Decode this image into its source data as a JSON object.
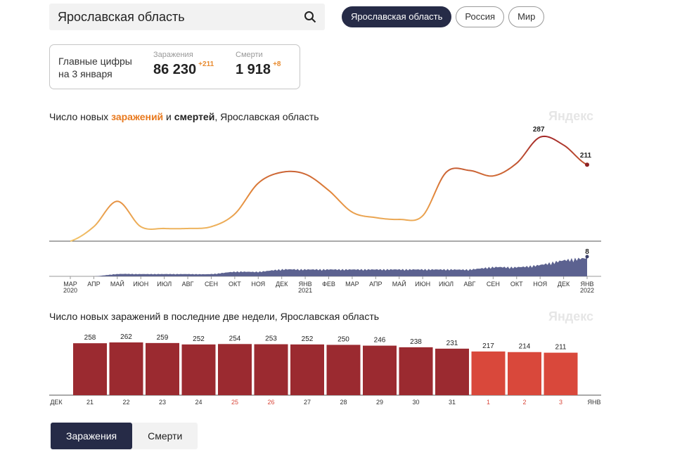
{
  "search": {
    "value": "Ярославская область"
  },
  "region_tabs": [
    {
      "label": "Ярославская область",
      "active": true
    },
    {
      "label": "Россия",
      "active": false
    },
    {
      "label": "Мир",
      "active": false
    }
  ],
  "summary": {
    "label_line1": "Главные цифры",
    "label_line2": "на 3 января",
    "infections_label": "Заражения",
    "infections_value": "86 230",
    "infections_delta": "+211",
    "deaths_label": "Смерти",
    "deaths_value": "1 918",
    "deaths_delta": "+8"
  },
  "chart1": {
    "title_part1": "Число новых ",
    "title_part2": "заражений",
    "title_part3": " и ",
    "title_part4": "смертей",
    "title_part5": ", Ярославская область",
    "watermark": "Яндекс"
  },
  "chart2": {
    "title": "Число новых заражений в последние две недели, Ярославская область",
    "watermark": "Яндекс"
  },
  "buttons": {
    "infections": "Заражения",
    "deaths": "Смерти"
  },
  "colors": {
    "accent_dark": "#262b47",
    "bar_dark": "#9b2a30",
    "bar_light": "#d9483b",
    "deaths_fill": "#5c6290",
    "holiday": "#d9483b"
  },
  "chart_data": [
    {
      "type": "line",
      "series": [
        {
          "name": "заражений",
          "x": [
            "2020-03",
            "2020-04",
            "2020-05",
            "2020-06",
            "2020-07",
            "2020-08",
            "2020-09",
            "2020-10",
            "2020-11",
            "2020-12",
            "2021-01",
            "2021-02",
            "2021-03",
            "2021-04",
            "2021-05",
            "2021-06",
            "2021-07",
            "2021-08",
            "2021-09",
            "2021-10",
            "2021-11",
            "2021-12",
            "2022-01"
          ],
          "values": [
            0,
            40,
            110,
            40,
            35,
            35,
            40,
            75,
            160,
            190,
            185,
            140,
            80,
            65,
            60,
            70,
            190,
            195,
            180,
            215,
            287,
            265,
            211
          ]
        },
        {
          "name": "смертей",
          "x": [
            "2020-03",
            "2020-04",
            "2020-05",
            "2020-06",
            "2020-07",
            "2020-08",
            "2020-09",
            "2020-10",
            "2020-11",
            "2020-12",
            "2021-01",
            "2021-02",
            "2021-03",
            "2021-04",
            "2021-05",
            "2021-06",
            "2021-07",
            "2021-08",
            "2021-09",
            "2021-10",
            "2021-11",
            "2021-12",
            "2022-01"
          ],
          "values": [
            0,
            0,
            1,
            1,
            1,
            1,
            1,
            2,
            2,
            3,
            3,
            3,
            3,
            3,
            3,
            3,
            3,
            3,
            4,
            4,
            5,
            7,
            8
          ]
        }
      ],
      "annotations": [
        {
          "label": "287",
          "x": "2021-11"
        },
        {
          "label": "211",
          "x": "2022-01"
        },
        {
          "label": "8",
          "x": "2022-01"
        }
      ],
      "x_tick_labels": [
        "МАР",
        "АПР",
        "МАЙ",
        "ИЮН",
        "ИЮЛ",
        "АВГ",
        "СЕН",
        "ОКТ",
        "НОЯ",
        "ДЕК",
        "ЯНВ",
        "ФЕВ",
        "МАР",
        "АПР",
        "МАЙ",
        "ИЮН",
        "ИЮЛ",
        "АВГ",
        "СЕН",
        "ОКТ",
        "НОЯ",
        "ДЕК",
        "ЯНВ"
      ],
      "year_labels": [
        {
          "tick": 0,
          "label": "2020"
        },
        {
          "tick": 10,
          "label": "2021"
        },
        {
          "tick": 22,
          "label": "2022"
        }
      ]
    },
    {
      "type": "bar",
      "categories": [
        "21",
        "22",
        "23",
        "24",
        "25",
        "26",
        "27",
        "28",
        "29",
        "30",
        "31",
        "1",
        "2",
        "3"
      ],
      "values": [
        258,
        262,
        259,
        252,
        254,
        253,
        252,
        250,
        246,
        238,
        231,
        217,
        214,
        211
      ],
      "holiday_categories": [
        "25",
        "26",
        "1",
        "2",
        "3"
      ],
      "axis_start_label": "ДЕК",
      "axis_end_label": "ЯНВ",
      "ylim": [
        0,
        262
      ]
    }
  ]
}
